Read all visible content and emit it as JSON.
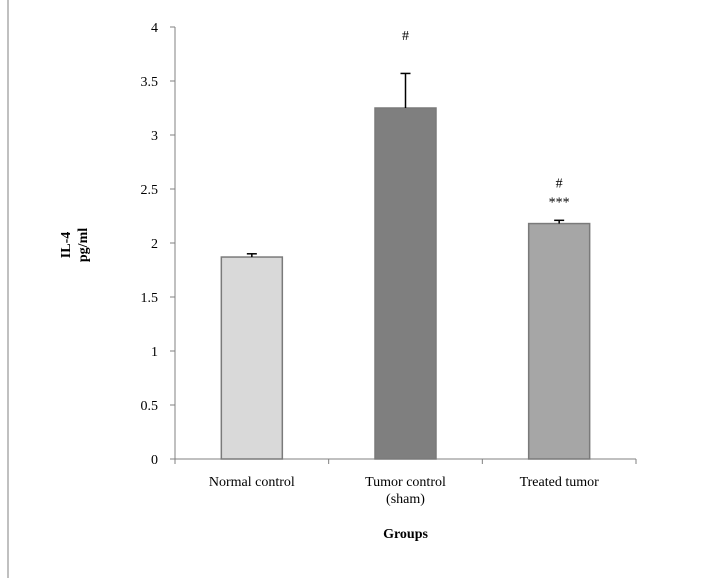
{
  "chart_data": {
    "type": "bar",
    "categories": [
      [
        "Normal control"
      ],
      [
        "Tumor control",
        "(sham)"
      ],
      [
        "Treated tumor"
      ]
    ],
    "values": [
      1.87,
      3.25,
      2.18
    ],
    "errors": [
      0.03,
      0.32,
      0.03
    ],
    "annotations": [
      [],
      [
        "#"
      ],
      [
        "#",
        "***"
      ]
    ],
    "bar_colors": [
      "#d9d9d9",
      "#7f7f7f",
      "#a6a6a6"
    ],
    "bar_stroke": "#7a7a7a",
    "ylabel": [
      "IL-4",
      "pg/ml"
    ],
    "xlabel": "Groups",
    "ylim": [
      0,
      4
    ],
    "yticks": [
      "0",
      "0.5",
      "1",
      "1.5",
      "2",
      "2.5",
      "3",
      "3.5",
      "4"
    ],
    "grid": false,
    "legend": "none"
  }
}
